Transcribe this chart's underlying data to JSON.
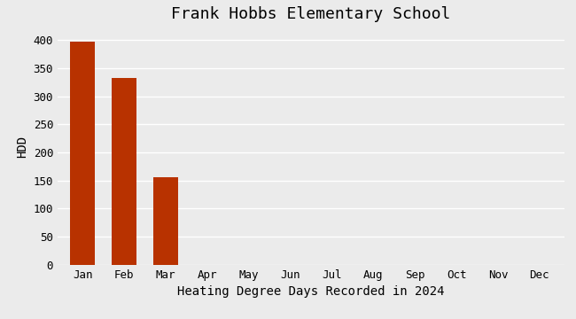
{
  "title": "Frank Hobbs Elementary School",
  "xlabel": "Heating Degree Days Recorded in 2024",
  "ylabel": "HDD",
  "categories": [
    "Jan",
    "Feb",
    "Mar",
    "Apr",
    "May",
    "Jun",
    "Jul",
    "Aug",
    "Sep",
    "Oct",
    "Nov",
    "Dec"
  ],
  "values": [
    397,
    333,
    156,
    0,
    0,
    0,
    0,
    0,
    0,
    0,
    0,
    0
  ],
  "bar_color": "#b83200",
  "background_color": "#ebebeb",
  "ylim": [
    0,
    420
  ],
  "yticks": [
    0,
    50,
    100,
    150,
    200,
    250,
    300,
    350,
    400
  ],
  "title_fontsize": 13,
  "label_fontsize": 10,
  "tick_fontsize": 9
}
